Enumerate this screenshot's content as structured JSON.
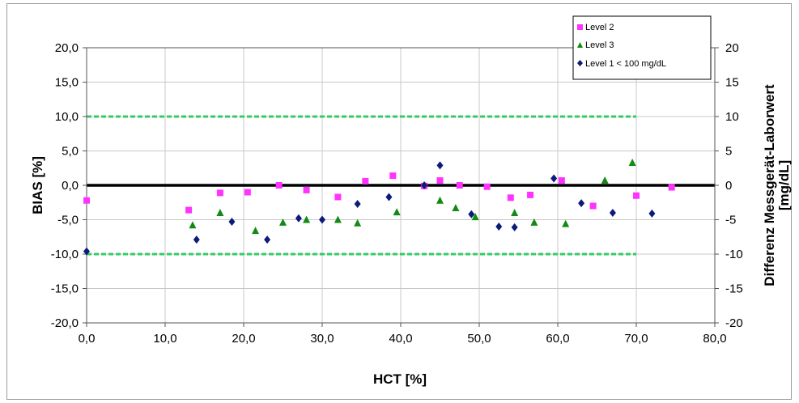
{
  "chart_data": {
    "type": "scatter",
    "xlabel": "HCT [%]",
    "ylabel": "BIAS [%]",
    "y2label_line1": "Differenz Messgerät-Laborwert",
    "y2label_line2": "[mg/dL]",
    "xlim": [
      0,
      80
    ],
    "ylim": [
      -20,
      20
    ],
    "y2lim": [
      -20,
      20
    ],
    "x_ticks": [
      "0,0",
      "10,0",
      "20,0",
      "30,0",
      "40,0",
      "50,0",
      "60,0",
      "70,0",
      "80,0"
    ],
    "y_ticks": [
      "20,0",
      "15,0",
      "10,0",
      "5,0",
      "0,0",
      "-5,0",
      "-10,0",
      "-15,0",
      "-20,0"
    ],
    "y2_ticks": [
      "20",
      "15",
      "10",
      "5",
      "0",
      "-5",
      "-10",
      "-15",
      "-20"
    ],
    "grid": true,
    "legend_position": "top-right",
    "reference_lines": [
      {
        "y": 10,
        "style": "dashed",
        "color": "#33cc66"
      },
      {
        "y": -10,
        "style": "dashed",
        "color": "#33cc66"
      },
      {
        "y": 0,
        "style": "solid",
        "color": "#000000"
      }
    ],
    "dashed_line_x_range": [
      0,
      70
    ],
    "series": [
      {
        "name": "Level 2",
        "marker": "square",
        "color": "#ff33ff",
        "points": [
          [
            0,
            -2.2
          ],
          [
            13,
            -3.6
          ],
          [
            17,
            -1.1
          ],
          [
            20.5,
            -1.0
          ],
          [
            24.5,
            0.0
          ],
          [
            28,
            -0.7
          ],
          [
            32,
            -1.7
          ],
          [
            35.5,
            0.6
          ],
          [
            39,
            1.4
          ],
          [
            43,
            -0.1
          ],
          [
            45,
            0.7
          ],
          [
            47.5,
            0.0
          ],
          [
            51,
            -0.2
          ],
          [
            54,
            -1.8
          ],
          [
            56.5,
            -1.4
          ],
          [
            60.5,
            0.7
          ],
          [
            64.5,
            -3.0
          ],
          [
            70,
            -1.5
          ],
          [
            74.5,
            -0.3
          ]
        ]
      },
      {
        "name": "Level 3",
        "marker": "triangle",
        "color": "#138a13",
        "points": [
          [
            13.5,
            -5.8
          ],
          [
            17,
            -4.0
          ],
          [
            21.5,
            -6.6
          ],
          [
            25,
            -5.4
          ],
          [
            28,
            -5.0
          ],
          [
            32,
            -5.0
          ],
          [
            34.5,
            -5.5
          ],
          [
            39.5,
            -3.9
          ],
          [
            45,
            -2.2
          ],
          [
            47,
            -3.3
          ],
          [
            49.5,
            -4.6
          ],
          [
            54.5,
            -4.0
          ],
          [
            57,
            -5.4
          ],
          [
            61,
            -5.6
          ],
          [
            66,
            0.7
          ],
          [
            69.5,
            3.3
          ]
        ]
      },
      {
        "name": "Level 1 < 100 mg/dL",
        "marker": "diamond",
        "color": "#0c1a7a",
        "points": [
          [
            0,
            -9.6
          ],
          [
            14,
            -7.9
          ],
          [
            18.5,
            -5.3
          ],
          [
            23,
            -7.9
          ],
          [
            27,
            -4.8
          ],
          [
            30,
            -5.0
          ],
          [
            34.5,
            -2.7
          ],
          [
            38.5,
            -1.7
          ],
          [
            43,
            0.0
          ],
          [
            45,
            2.9
          ],
          [
            49,
            -4.2
          ],
          [
            52.5,
            -6.0
          ],
          [
            54.5,
            -6.1
          ],
          [
            59.5,
            1.0
          ],
          [
            63,
            -2.6
          ],
          [
            67,
            -4.0
          ],
          [
            72,
            -4.1
          ]
        ]
      }
    ]
  }
}
